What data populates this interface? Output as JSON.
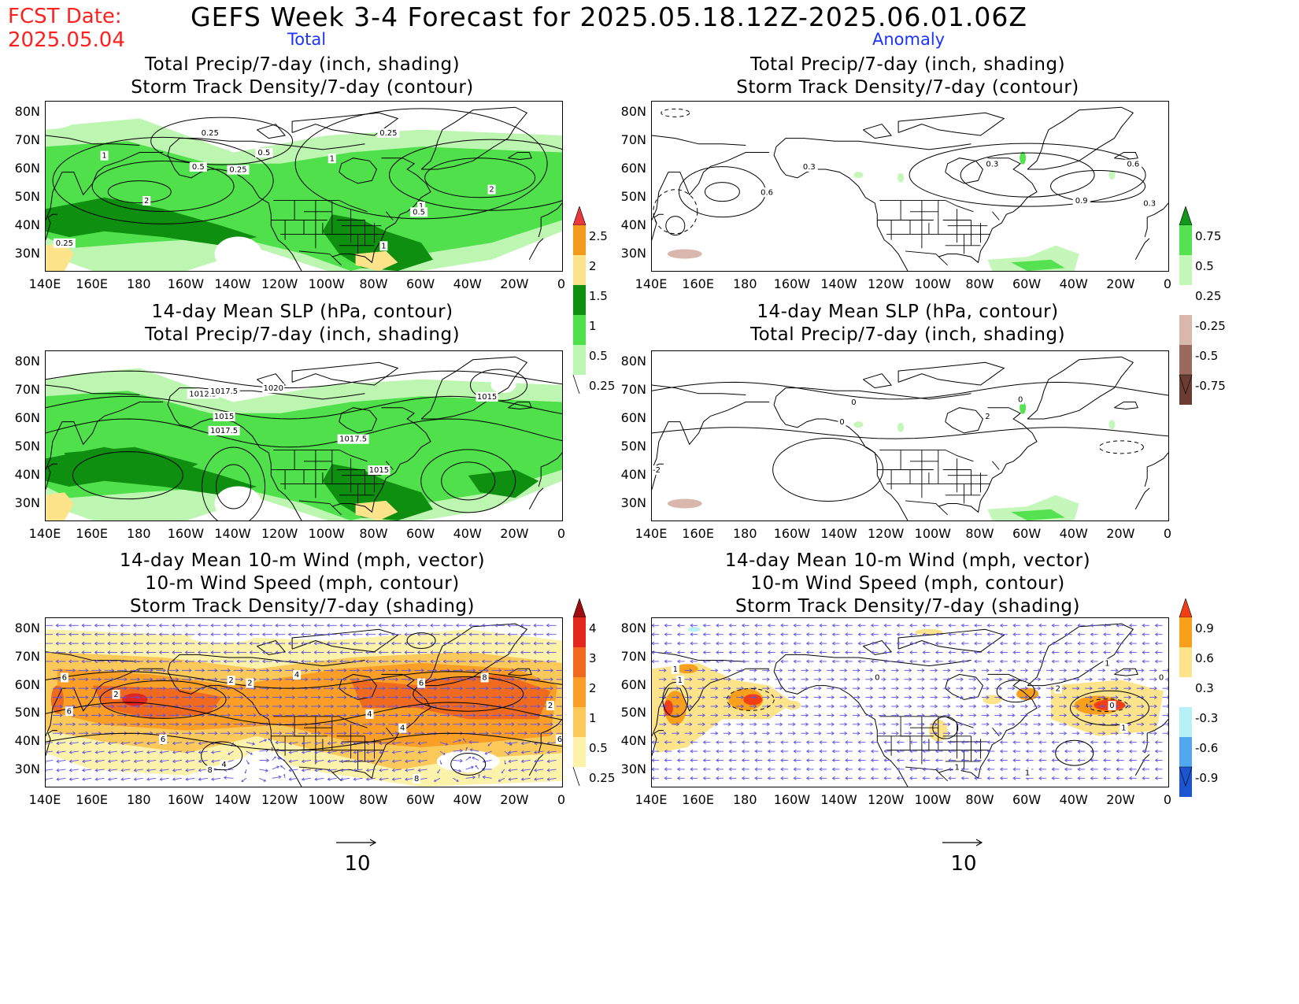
{
  "header": {
    "fcst_label": "FCST Date:",
    "fcst_date": "2025.05.04",
    "title": "GEFS Week 3-4 Forecast for 2025.05.18.12Z-2025.06.01.06Z",
    "col_left": "Total",
    "col_right": "Anomaly"
  },
  "panels": {
    "r1_left": {
      "t1": "Total Precip/7-day (inch, shading)",
      "t2": "Storm Track Density/7-day (contour)",
      "contour_labels": [
        "0.25",
        "1",
        "0.5",
        "0.25",
        "2",
        "0.5",
        "1",
        "0.25",
        "2",
        "1",
        "0.5",
        "1",
        "0.25"
      ]
    },
    "r1_right": {
      "t1": "Total Precip/7-day (inch, shading)",
      "t2": "Storm Track Density/7-day (contour)",
      "contour_labels": [
        "0.6",
        "0.3",
        "0.3",
        "0.6",
        "0.9",
        "0.3"
      ]
    },
    "r2_left": {
      "t1": "14-day Mean SLP (hPa, contour)",
      "t2": "Total Precip/7-day (inch, shading)",
      "contour_labels": [
        "1012.5",
        "1017.5",
        "1020",
        "1015",
        "1017.5",
        "1015",
        "1017.5",
        "1015"
      ]
    },
    "r2_right": {
      "t1": "14-day Mean SLP (hPa, contour)",
      "t2": "Total Precip/7-day (inch, shading)",
      "contour_labels": [
        "0",
        "0",
        "2",
        "0",
        "-2"
      ]
    },
    "r3_left": {
      "t1": "14-day Mean 10-m Wind (mph, vector)",
      "t2": "10-m Wind Speed (mph, contour)",
      "t3": "Storm Track Density/7-day (shading)",
      "contour_labels": [
        "6",
        "4",
        "2",
        "2",
        "4",
        "2",
        "6",
        "8",
        "6",
        "2",
        "4",
        "4",
        "6",
        "8",
        "8",
        "6"
      ]
    },
    "r3_right": {
      "t1": "14-day Mean 10-m Wind (mph, vector)",
      "t2": "10-m Wind Speed (mph, contour)",
      "t3": "Storm Track Density/7-day (shading)",
      "contour_labels": [
        "1",
        "1",
        "0",
        "2",
        "1",
        "0",
        "1",
        "1",
        "1",
        "0"
      ]
    }
  },
  "axes": {
    "lat_labels": [
      "80N",
      "70N",
      "60N",
      "50N",
      "40N",
      "30N"
    ],
    "lon_labels": [
      "140E",
      "160E",
      "180",
      "160W",
      "140W",
      "120W",
      "100W",
      "80W",
      "60W",
      "40W",
      "20W",
      "0"
    ]
  },
  "colorbars": {
    "precip_total": {
      "ticks": [
        "2.5",
        "2",
        "1.5",
        "1",
        "0.5",
        "0.25"
      ],
      "colors": [
        "#e8383a",
        "#f29a1c",
        "#fde389",
        "#0e8f10",
        "#4fe04b",
        "#bdf6b0"
      ]
    },
    "precip_anom": {
      "ticks": [
        "0.75",
        "0.5",
        "0.25",
        "-0.25",
        "-0.5",
        "-0.75"
      ],
      "colors": [
        "#11981a",
        "#55e251",
        "#c4f7b9",
        "#ffffff",
        "#d9b7ad",
        "#9b6a5e",
        "#6b3d32"
      ]
    },
    "storm_total": {
      "ticks": [
        "4",
        "3",
        "2",
        "1",
        "0.5",
        "0.25"
      ],
      "colors": [
        "#9c0d0f",
        "#e0261d",
        "#ef6a1e",
        "#fa9e26",
        "#fbc85a",
        "#fdf2a9"
      ]
    },
    "storm_anom": {
      "ticks": [
        "0.9",
        "0.6",
        "0.3",
        "-0.3",
        "-0.6",
        "-0.9"
      ],
      "colors": [
        "#f33f16",
        "#f8a01c",
        "#fde48a",
        "#ffffff",
        "#b8f0f8",
        "#52a7ef",
        "#1d55d1"
      ]
    }
  },
  "vector_refs": {
    "left": "10",
    "right": "10"
  },
  "colors": {
    "land_line": "#000000",
    "vector": "#5a52e0",
    "fcst": "#ff2020",
    "column_head": "#1a33ff"
  }
}
